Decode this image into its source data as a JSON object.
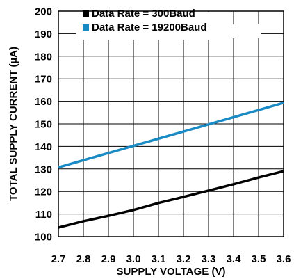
{
  "chart_data": {
    "type": "line",
    "title": "",
    "xlabel": "SUPPLY VOLTAGE (V)",
    "ylabel": "TOTAL SUPPLY CURRENT (µA)",
    "xlim": [
      2.7,
      3.6
    ],
    "ylim": [
      100,
      200
    ],
    "x_ticks": [
      "2.7",
      "2.8",
      "2.9",
      "3.0",
      "3.1",
      "3.2",
      "3.3",
      "3.4",
      "3.5",
      "3.6"
    ],
    "y_ticks": [
      "100",
      "110",
      "120",
      "130",
      "140",
      "150",
      "160",
      "170",
      "180",
      "190",
      "200"
    ],
    "grid": true,
    "legend_position": "top-left",
    "series": [
      {
        "name": "Data Rate = 300Baud",
        "color": "#000000",
        "x": [
          2.7,
          2.8,
          2.9,
          3.0,
          3.1,
          3.2,
          3.3,
          3.4,
          3.5,
          3.6
        ],
        "y": [
          104,
          106.8,
          109.2,
          111.8,
          114.9,
          117.6,
          120.4,
          123.2,
          126.2,
          129
        ]
      },
      {
        "name": "Data Rate = 19200Baud",
        "color": "#1a8ac4",
        "x": [
          2.7,
          3.6
        ],
        "y": [
          130.7,
          159.3
        ]
      }
    ]
  }
}
